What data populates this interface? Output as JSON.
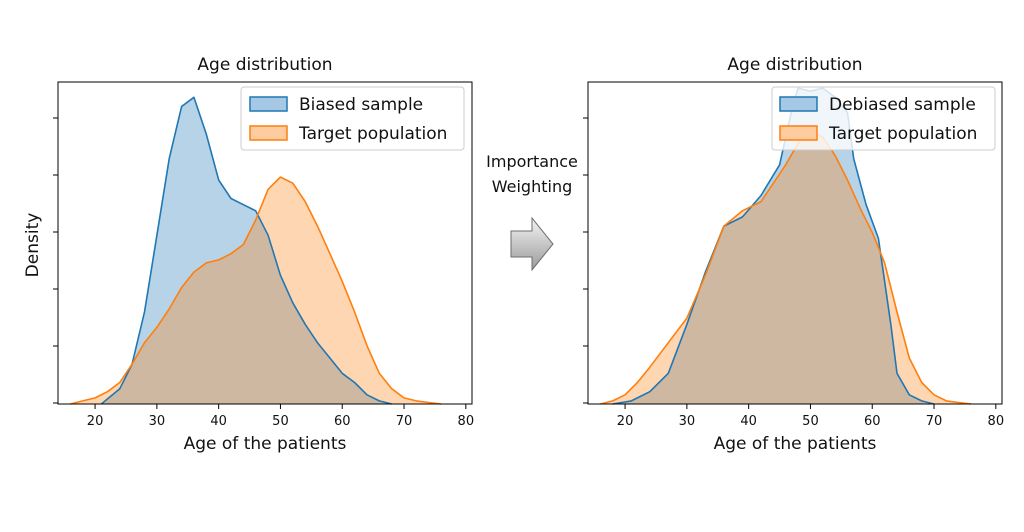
{
  "transition": {
    "line1": "Importance",
    "line2": "Weighting"
  },
  "colors": {
    "blue": "#1f77b4",
    "orange": "#ff7f0e",
    "blue_fill": "#a6c8e4",
    "orange_fill": "#ffcc9f",
    "overlap_fill": "#c9b19a"
  },
  "chart_data": [
    {
      "type": "area",
      "title": "Age distribution",
      "xlabel": "Age of the patients",
      "ylabel": "Density",
      "xlim": [
        14,
        81
      ],
      "ylim": [
        0,
        1.05
      ],
      "xticks": [
        20,
        30,
        40,
        50,
        60,
        70,
        80
      ],
      "xtick_labels": [
        "20",
        "30",
        "40",
        "50",
        "60",
        "70",
        "80"
      ],
      "y_tick_labels_shown": false,
      "legend_position": "top-right",
      "series": [
        {
          "name": "Biased sample",
          "x": [
            21,
            24,
            26,
            28,
            30,
            32,
            34,
            36,
            38,
            40,
            42,
            44,
            46,
            48,
            50,
            52,
            54,
            56,
            58,
            60,
            62,
            64,
            66,
            68
          ],
          "values": [
            0.0,
            0.05,
            0.13,
            0.3,
            0.55,
            0.8,
            0.97,
            1.0,
            0.88,
            0.73,
            0.67,
            0.65,
            0.63,
            0.55,
            0.42,
            0.33,
            0.26,
            0.2,
            0.15,
            0.1,
            0.07,
            0.03,
            0.01,
            0.0
          ]
        },
        {
          "name": "Target population",
          "x": [
            16,
            18,
            20,
            22,
            24,
            26,
            28,
            30,
            32,
            34,
            36,
            38,
            40,
            42,
            44,
            46,
            48,
            50,
            52,
            54,
            56,
            58,
            60,
            62,
            64,
            66,
            68,
            70,
            72,
            74,
            76
          ],
          "values": [
            0.0,
            0.01,
            0.02,
            0.04,
            0.07,
            0.13,
            0.2,
            0.25,
            0.31,
            0.38,
            0.43,
            0.46,
            0.47,
            0.49,
            0.52,
            0.6,
            0.7,
            0.74,
            0.72,
            0.66,
            0.58,
            0.49,
            0.4,
            0.3,
            0.19,
            0.1,
            0.05,
            0.02,
            0.01,
            0.005,
            0.0
          ]
        }
      ]
    },
    {
      "type": "area",
      "title": "Age distribution",
      "xlabel": "Age of the patients",
      "ylabel": "",
      "xlim": [
        14,
        81
      ],
      "ylim": [
        0,
        1.05
      ],
      "xticks": [
        20,
        30,
        40,
        50,
        60,
        70,
        80
      ],
      "xtick_labels": [
        "20",
        "30",
        "40",
        "50",
        "60",
        "70",
        "80"
      ],
      "y_tick_labels_shown": false,
      "legend_position": "top-right",
      "series": [
        {
          "name": "Debiased sample",
          "x": [
            18,
            21,
            24,
            27,
            30,
            33,
            36,
            39,
            42,
            45,
            47,
            48,
            50,
            52,
            54,
            56,
            57,
            59,
            61,
            62,
            63,
            64,
            66,
            68,
            70
          ],
          "values": [
            0.0,
            0.01,
            0.04,
            0.1,
            0.26,
            0.43,
            0.58,
            0.61,
            0.68,
            0.78,
            0.96,
            1.03,
            1.02,
            1.03,
            1.0,
            0.95,
            0.8,
            0.65,
            0.54,
            0.4,
            0.26,
            0.1,
            0.03,
            0.01,
            0.0
          ]
        },
        {
          "name": "Target population",
          "x": [
            16,
            18,
            20,
            22,
            24,
            27,
            30,
            33,
            36,
            39,
            42,
            44,
            46,
            48,
            50,
            52,
            54,
            56,
            58,
            60,
            62,
            64,
            66,
            68,
            70,
            72,
            74,
            76
          ],
          "values": [
            0.0,
            0.01,
            0.03,
            0.07,
            0.12,
            0.2,
            0.28,
            0.42,
            0.58,
            0.63,
            0.66,
            0.72,
            0.78,
            0.85,
            0.89,
            0.87,
            0.81,
            0.73,
            0.64,
            0.56,
            0.46,
            0.3,
            0.15,
            0.07,
            0.03,
            0.01,
            0.005,
            0.0
          ]
        }
      ]
    }
  ]
}
